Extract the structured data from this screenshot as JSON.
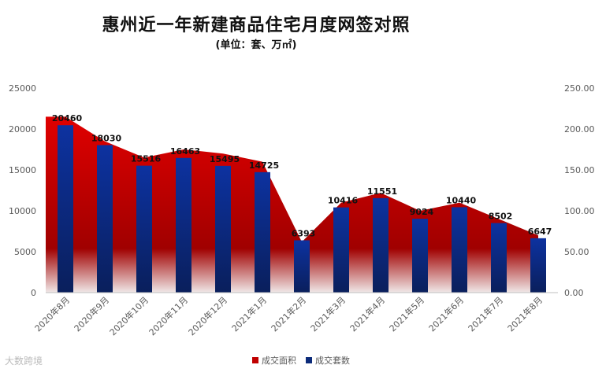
{
  "title": "惠州近一年新建商品住宅月度网签对照",
  "subtitle": "(单位：套、万㎡)",
  "footer": "大数跨境",
  "chart_data": {
    "type": "bar+area",
    "categories": [
      "2020年8月",
      "2020年9月",
      "2020年10月",
      "2020年11月",
      "2020年12月",
      "2021年1月",
      "2021年2月",
      "2021年3月",
      "2021年4月",
      "2021年5月",
      "2021年6月",
      "2021年7月",
      "2021年8月"
    ],
    "series": [
      {
        "name": "成交面积",
        "type": "area",
        "axis": "right",
        "color": "#c00000",
        "values": [
          215,
          185,
          165,
          175,
          170,
          160,
          62,
          110,
          122,
          100,
          110,
          90,
          70
        ]
      },
      {
        "name": "成交套数",
        "type": "bar",
        "axis": "left",
        "color": "#0c2b7a",
        "values": [
          20460,
          18030,
          15516,
          16463,
          15495,
          14725,
          6393,
          10416,
          11551,
          9024,
          10440,
          8502,
          6647
        ]
      }
    ],
    "ylim_left": [
      0,
      25000
    ],
    "yticks_left": [
      "0",
      "5000",
      "10000",
      "15000",
      "20000",
      "25000"
    ],
    "ylim_right": [
      0,
      250
    ],
    "yticks_right": [
      "0.00",
      "50.00",
      "100.00",
      "150.00",
      "200.00",
      "250.00"
    ],
    "legend": [
      "成交面积",
      "成交套数"
    ],
    "legend_position": "bottom",
    "grid": false
  }
}
